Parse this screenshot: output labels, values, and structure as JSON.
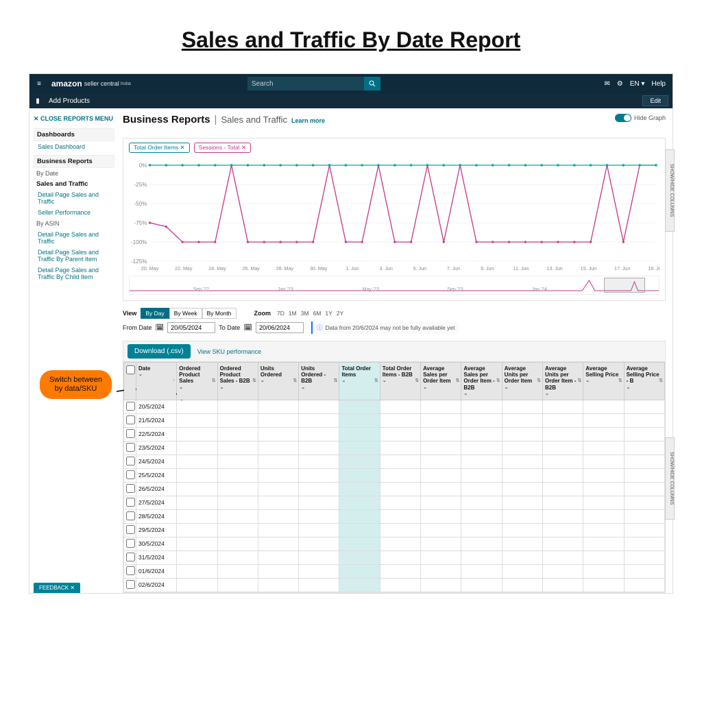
{
  "doc_title": "Sales and Traffic By Date Report",
  "header": {
    "brand": "amazon",
    "brand_sub": "seller central",
    "brand_region": "India",
    "search_placeholder": "Search",
    "lang": "EN",
    "help": "Help"
  },
  "toolbar": {
    "add": "Add Products",
    "edit": "Edit"
  },
  "sidebar": {
    "close": "CLOSE REPORTS MENU",
    "dashboards": "Dashboards",
    "dashboards_items": [
      "Sales Dashboard"
    ],
    "biz": "Business Reports",
    "by_date": "By Date",
    "by_date_items": [
      "Sales and Traffic",
      "Detail Page Sales and Traffic",
      "Seller Performance"
    ],
    "by_asin": "By ASIN",
    "by_asin_items": [
      "Detail Page Sales and Traffic",
      "Detail Page Sales and Traffic By Parent Item",
      "Detail Page Sales and Traffic By Child Item"
    ]
  },
  "page": {
    "title": "Business Reports",
    "subtitle": "Sales and Traffic",
    "learn": "Learn more",
    "hide_graph": "Hide Graph"
  },
  "chart": {
    "chips": [
      "Total Order Items ✕",
      "Sessions - Total ✕"
    ],
    "chip_colors": [
      "#008296",
      "#c7378a"
    ],
    "y_ticks": [
      "0%",
      "-25%",
      "-50%",
      "-75%",
      "-100%",
      "-125%"
    ],
    "x_ticks": [
      "20. May",
      "22. May",
      "24. May",
      "26. May",
      "28. May",
      "30. May",
      "1. Jun",
      "3. Jun",
      "5. Jun",
      "7. Jun",
      "9. Jun",
      "11. Jun",
      "13. Jun",
      "15. Jun",
      "17. Jun",
      "19. Jun"
    ],
    "teal_color": "#00a8a8",
    "pink_color": "#c7378a",
    "grid_color": "#e6e6e6",
    "pink_values": [
      -75,
      -80,
      -100,
      -100,
      -100,
      0,
      -100,
      -100,
      -100,
      -100,
      -100,
      0,
      -100,
      -100,
      0,
      -100,
      -100,
      0,
      -100,
      0,
      -100,
      -100,
      -100,
      -100,
      -100,
      -100,
      -100,
      -100,
      0,
      -100,
      0,
      0
    ],
    "teal_values": [
      0,
      0,
      0,
      0,
      0,
      0,
      0,
      0,
      0,
      0,
      0,
      0,
      0,
      0,
      0,
      0,
      0,
      0,
      0,
      0,
      0,
      0,
      0,
      0,
      0,
      0,
      0,
      0,
      0,
      0,
      0,
      0
    ],
    "minimap": {
      "labels": [
        "Sep '22",
        "Jan '23",
        "May '23",
        "Sep '23",
        "Jan '24"
      ]
    }
  },
  "controls": {
    "view_label": "View",
    "view_options": [
      "By Day",
      "By Week",
      "By Month"
    ],
    "view_active": 0,
    "zoom_label": "Zoom",
    "zoom_options": [
      "7D",
      "1M",
      "3M",
      "6M",
      "1Y",
      "2Y"
    ],
    "from_label": "From Date",
    "to_label": "To Date",
    "from_date": "20/05/2024",
    "to_date": "20/06/2024",
    "info_msg": "Data from 20/6/2024 may not be fully available yet"
  },
  "dl": {
    "button": "Download (.csv)",
    "link": "View SKU performance"
  },
  "table": {
    "columns": [
      "Date",
      "Ordered Product Sales",
      "Ordered Product Sales - B2B",
      "Units Ordered",
      "Units Ordered - B2B",
      "Total Order Items",
      "Total Order Items - B2B",
      "Average Sales per Order Item",
      "Average Sales per Order Item - B2B",
      "Average Units per Order Item",
      "Average Units per Order Item - B2B",
      "Average Selling Price",
      "Average Selling Price - B"
    ],
    "highlight_col": 5,
    "rows": [
      "20/5/2024",
      "21/5/2024",
      "22/5/2024",
      "23/5/2024",
      "24/5/2024",
      "25/5/2024",
      "26/5/2024",
      "27/5/2024",
      "28/5/2024",
      "29/5/2024",
      "30/5/2024",
      "31/5/2024",
      "01/6/2024",
      "02/6/2024"
    ]
  },
  "annotation": "Switch between by data/SKU",
  "side_tab": "SHOW/HIDE COLUMNS",
  "feedback": "FEEDBACK ✕"
}
